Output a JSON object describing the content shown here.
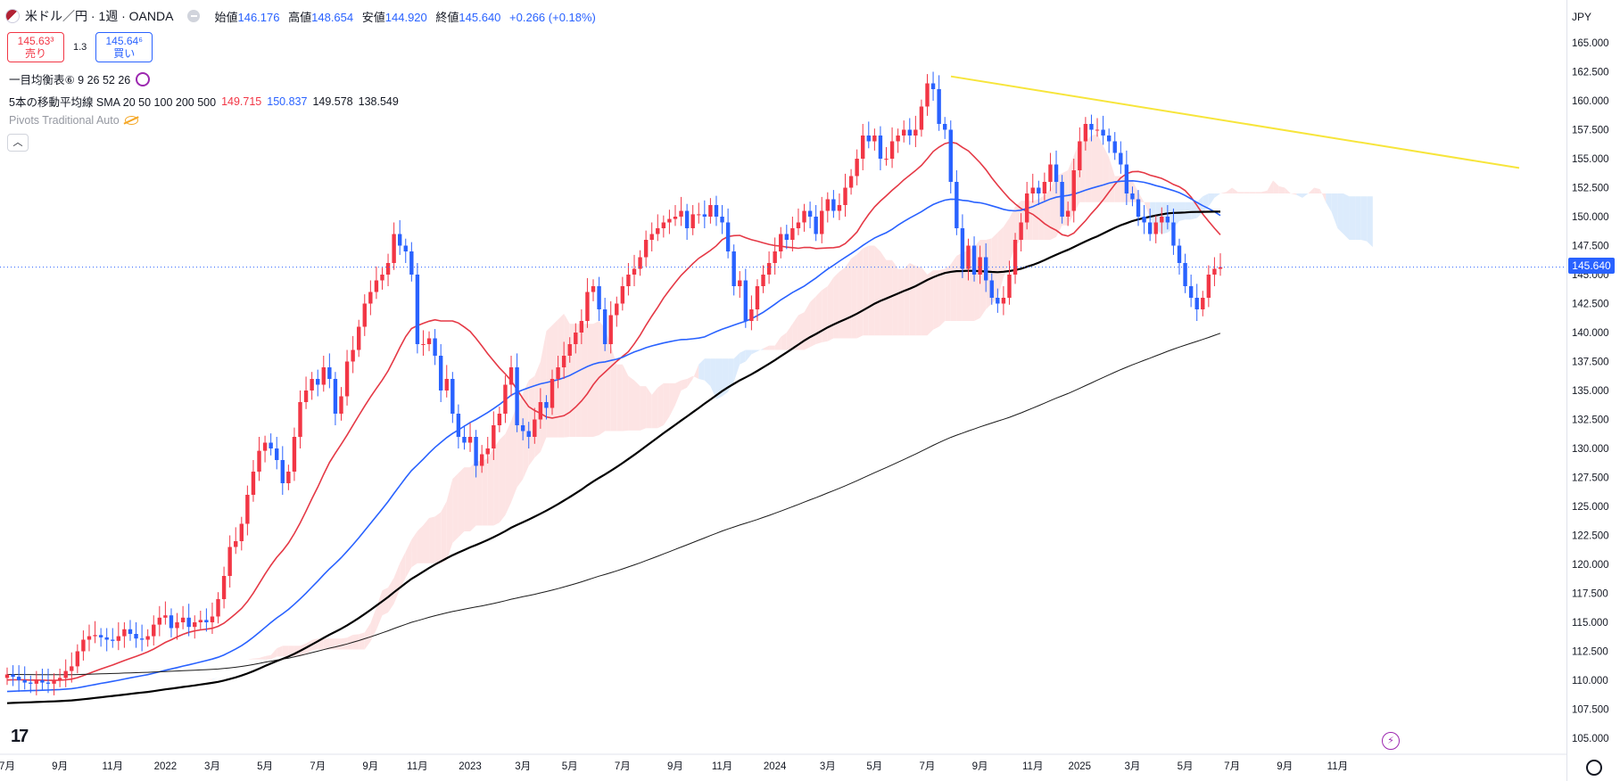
{
  "header": {
    "symbol": "米ドル／円 · 1週 · OANDA",
    "open_label": "始値",
    "open": "146.176",
    "high_label": "高値",
    "high": "148.654",
    "low_label": "安値",
    "low": "144.920",
    "close_label": "終値",
    "close": "145.640",
    "change": "+0.266 (+0.18%)"
  },
  "trade": {
    "sell_price": "145.63³",
    "sell_label": "売り",
    "spread": "1.3",
    "buy_price": "145.64⁶",
    "buy_label": "買い"
  },
  "indicators": {
    "ichimoku_label": "一目均衡表⑥ 9 26 52 26",
    "ma_label": "5本の移動平均線 SMA 20 50 100 200 500",
    "ma_val_1": "149.715",
    "ma_val_2": "150.837",
    "ma_val_3": "149.578",
    "ma_val_4": "138.549",
    "pivots_label": "Pivots Traditional Auto"
  },
  "currency": "JPY",
  "last_price": "145.640",
  "tv_logo": "17",
  "colors": {
    "up": "#f23645",
    "down": "#2962ff",
    "sma20": "#e53946",
    "sma50": "#2962ff",
    "sma100": "#000000",
    "sma200": "#1a1a1a",
    "trendline": "#f7e53b",
    "cloud_bull": "#fde4e4",
    "cloud_bear": "#dcebfc"
  },
  "chart_data": {
    "type": "line",
    "y_range": [
      104.0,
      166.0
    ],
    "y_ticks": [
      "165.000",
      "162.500",
      "160.000",
      "157.500",
      "155.000",
      "152.500",
      "150.000",
      "147.500",
      "145.000",
      "142.500",
      "140.000",
      "137.500",
      "135.000",
      "132.500",
      "130.000",
      "127.500",
      "125.000",
      "122.500",
      "120.000",
      "117.500",
      "115.000",
      "112.500",
      "110.000",
      "107.500",
      "105.000"
    ],
    "x_ticks": [
      "7月",
      "9月",
      "11月",
      "2022",
      "3月",
      "5月",
      "7月",
      "9月",
      "11月",
      "2023",
      "3月",
      "5月",
      "7月",
      "9月",
      "11月",
      "2024",
      "3月",
      "5月",
      "7月",
      "9月",
      "11月",
      "2025",
      "3月",
      "5月",
      "7月",
      "9月",
      "11月"
    ],
    "x_ticks_index": [
      0,
      9,
      18,
      27,
      35,
      44,
      53,
      62,
      70,
      79,
      88,
      96,
      105,
      114,
      122,
      131,
      140,
      148,
      157,
      166,
      175,
      183,
      192,
      201,
      209,
      218,
      227
    ],
    "close_approx": [
      110.5,
      110.3,
      110.0,
      109.8,
      109.7,
      110.0,
      109.8,
      109.7,
      110.0,
      110.2,
      110.8,
      111.2,
      112.5,
      113.5,
      113.8,
      113.9,
      113.7,
      113.5,
      113.4,
      113.8,
      114.4,
      114.0,
      113.6,
      113.5,
      113.8,
      114.8,
      115.4,
      115.6,
      114.5,
      115.0,
      115.4,
      114.6,
      115.0,
      115.2,
      115.0,
      115.5,
      117.0,
      119.0,
      121.5,
      122.0,
      123.5,
      126.0,
      128.0,
      129.8,
      130.5,
      130.0,
      129.0,
      127.0,
      128.0,
      131.0,
      134.0,
      135.0,
      136.0,
      135.5,
      137.0,
      136.0,
      133.0,
      134.5,
      137.5,
      138.5,
      140.5,
      142.5,
      143.5,
      144.5,
      145.0,
      146.0,
      148.5,
      147.5,
      147.0,
      145.0,
      139.0,
      139.0,
      139.5,
      138.0,
      135.0,
      136.0,
      133.0,
      131.0,
      130.5,
      131.0,
      128.5,
      129.5,
      130.0,
      132.0,
      133.0,
      135.5,
      137.0,
      132.0,
      131.5,
      131.0,
      132.5,
      134.0,
      133.5,
      136.0,
      137.0,
      138.0,
      139.0,
      140.0,
      141.0,
      143.5,
      144.0,
      142.0,
      139.0,
      141.5,
      142.5,
      144.0,
      145.0,
      145.5,
      146.5,
      148.0,
      148.5,
      149.0,
      149.5,
      149.8,
      150.0,
      150.5,
      149.0,
      150.2,
      150.2,
      150.0,
      151.0,
      150.0,
      149.5,
      147.0,
      144.0,
      144.5,
      141.0,
      142.0,
      144.0,
      145.0,
      146.0,
      147.0,
      148.5,
      148.0,
      149.0,
      149.5,
      150.5,
      150.0,
      148.5,
      150.5,
      151.5,
      150.5,
      151.0,
      152.5,
      153.5,
      155.0,
      157.0,
      156.5,
      157.0,
      155.0,
      155.0,
      156.5,
      157.0,
      157.5,
      157.0,
      157.5,
      159.5,
      161.5,
      161.0,
      158.0,
      157.5,
      153.0,
      149.0,
      145.5,
      147.5,
      145.0,
      146.5,
      144.5,
      143.0,
      142.5,
      143.0,
      145.0,
      148.0,
      149.5,
      152.0,
      152.5,
      152.0,
      153.0,
      154.5,
      153.0,
      150.0,
      150.5,
      154.0,
      156.5,
      158.0,
      157.5,
      157.5,
      157.0,
      156.5,
      155.5,
      154.5,
      152.0,
      151.5,
      150.0,
      149.5,
      148.5,
      149.5,
      150.0,
      149.5,
      147.5,
      146.0,
      144.0,
      143.0,
      142.0,
      143.0,
      145.0,
      145.5,
      145.64
    ]
  }
}
